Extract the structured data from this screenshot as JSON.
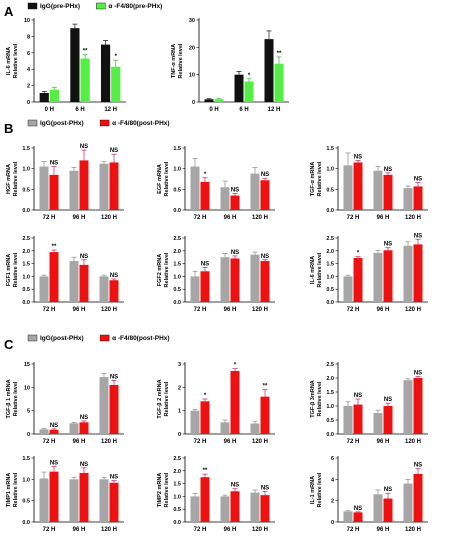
{
  "panels": [
    {
      "letter": "A",
      "series": [
        "IgG(pre-PHx)",
        "α -F4/80(pre-PHx)"
      ],
      "colors": [
        "#111111",
        "#55ee44"
      ]
    },
    {
      "letter": "B",
      "series": [
        "IgG(post-PHx)",
        "α -F4/80(post-PHx)"
      ],
      "colors": [
        "#a6a6a6",
        "#ee1111"
      ]
    },
    {
      "letter": "C",
      "series": [
        "IgG(post-PHx)",
        "α -F4/80(post-PHx)"
      ],
      "colors": [
        "#a6a6a6",
        "#ee1111"
      ]
    }
  ],
  "chart_data": [
    {
      "id": "A1",
      "type": "bar",
      "panel": "A",
      "ylabel": [
        "IL-6 mRNA",
        "Relative level"
      ],
      "categories": [
        "0 H",
        "6 H",
        "12 H"
      ],
      "ylim": [
        0,
        10
      ],
      "yticks": [
        0,
        2,
        4,
        6,
        8,
        10
      ],
      "series": [
        {
          "name": "IgG(pre-PHx)",
          "values": [
            1.1,
            9.0,
            7.0
          ],
          "err": [
            0.2,
            0.5,
            0.5
          ]
        },
        {
          "name": "α -F4/80(pre-PHx)",
          "values": [
            1.5,
            5.3,
            4.3
          ],
          "err": [
            0.3,
            0.5,
            0.8
          ]
        }
      ],
      "sig": [
        "",
        "**",
        "*"
      ]
    },
    {
      "id": "A2",
      "type": "bar",
      "panel": "A",
      "ylabel": [
        "TNF-α mRNA",
        "Relative level"
      ],
      "categories": [
        "0 H",
        "6 H",
        "12 H"
      ],
      "ylim": [
        0,
        30
      ],
      "yticks": [
        0,
        10,
        20,
        30
      ],
      "series": [
        {
          "name": "IgG(pre-PHx)",
          "values": [
            1.0,
            10.0,
            23.0
          ],
          "err": [
            0.2,
            1.2,
            3.0
          ]
        },
        {
          "name": "α -F4/80(pre-PHx)",
          "values": [
            1.0,
            7.5,
            14.0
          ],
          "err": [
            0.2,
            1.0,
            2.5
          ]
        }
      ],
      "sig": [
        "",
        "*",
        "**"
      ]
    },
    {
      "id": "B1",
      "type": "bar",
      "panel": "B",
      "ylabel": [
        "HGF mRNA",
        "Relative level"
      ],
      "categories": [
        "72 H",
        "96 H",
        "120 H"
      ],
      "ylim": [
        0,
        1.5
      ],
      "yticks": [
        0.0,
        0.5,
        1.0,
        1.5
      ],
      "series": [
        {
          "name": "IgG(post-PHx)",
          "values": [
            1.05,
            0.95,
            1.12
          ],
          "err": [
            0.12,
            0.08,
            0.05
          ]
        },
        {
          "name": "α -F4/80(post-PHx)",
          "values": [
            0.85,
            1.2,
            1.15
          ],
          "err": [
            0.2,
            0.25,
            0.2
          ]
        }
      ],
      "sig": [
        "NS",
        "NS",
        "NS"
      ]
    },
    {
      "id": "B2",
      "type": "bar",
      "panel": "B",
      "ylabel": [
        "EGF mRNA",
        "Relative level"
      ],
      "categories": [
        "72 H",
        "96 H",
        "120 H"
      ],
      "ylim": [
        0,
        1.5
      ],
      "yticks": [
        0.0,
        0.5,
        1.0,
        1.5
      ],
      "series": [
        {
          "name": "IgG(post-PHx)",
          "values": [
            1.05,
            0.55,
            0.88
          ],
          "err": [
            0.2,
            0.15,
            0.15
          ]
        },
        {
          "name": "α -F4/80(post-PHx)",
          "values": [
            0.68,
            0.35,
            0.72
          ],
          "err": [
            0.1,
            0.05,
            0.05
          ]
        }
      ],
      "sig": [
        "*",
        "NS",
        "NS"
      ]
    },
    {
      "id": "B3",
      "type": "bar",
      "panel": "B",
      "ylabel": [
        "TGF-α mRNA",
        "Relative level"
      ],
      "categories": [
        "72 H",
        "96 H",
        "120 H"
      ],
      "ylim": [
        0,
        1.5
      ],
      "yticks": [
        0.0,
        0.5,
        1.0,
        1.5
      ],
      "series": [
        {
          "name": "IgG(post-PHx)",
          "values": [
            1.08,
            0.95,
            0.53
          ],
          "err": [
            0.3,
            0.1,
            0.05
          ]
        },
        {
          "name": "α -F4/80(post-PHx)",
          "values": [
            1.15,
            0.85,
            0.57
          ],
          "err": [
            0.05,
            0.05,
            0.1
          ]
        }
      ],
      "sig": [
        "NS",
        "NS",
        "NS"
      ]
    },
    {
      "id": "B4",
      "type": "bar",
      "panel": "B",
      "ylabel": [
        "FGF1 mRNA",
        "Relative level"
      ],
      "categories": [
        "72 H",
        "96 H",
        "120 H"
      ],
      "ylim": [
        0,
        2.5
      ],
      "yticks": [
        0.0,
        0.5,
        1.0,
        1.5,
        2.0,
        2.5
      ],
      "series": [
        {
          "name": "IgG(post-PHx)",
          "values": [
            1.0,
            1.6,
            1.0
          ],
          "err": [
            0.05,
            0.15,
            0.05
          ]
        },
        {
          "name": "α -F4/80(post-PHx)",
          "values": [
            1.95,
            1.45,
            0.85
          ],
          "err": [
            0.08,
            0.2,
            0.05
          ]
        }
      ],
      "sig": [
        "**",
        "NS",
        "NS"
      ]
    },
    {
      "id": "B5",
      "type": "bar",
      "panel": "B",
      "ylabel": [
        "FGF2 mRNA",
        "Relative level"
      ],
      "categories": [
        "72 H",
        "96 H",
        "120 H"
      ],
      "ylim": [
        0,
        2.5
      ],
      "yticks": [
        0.0,
        0.5,
        1.0,
        1.5,
        2.0,
        2.5
      ],
      "series": [
        {
          "name": "IgG(post-PHx)",
          "values": [
            1.0,
            1.75,
            1.85
          ],
          "err": [
            0.2,
            0.15,
            0.1
          ]
        },
        {
          "name": "α -F4/80(post-PHx)",
          "values": [
            1.2,
            1.7,
            1.6
          ],
          "err": [
            0.15,
            0.1,
            0.05
          ]
        }
      ],
      "sig": [
        "NS",
        "NS",
        "NS"
      ]
    },
    {
      "id": "B6",
      "type": "bar",
      "panel": "B",
      "ylabel": [
        "IL-6 mRNA",
        "Relative level"
      ],
      "categories": [
        "72 H",
        "96 H",
        "120 H"
      ],
      "ylim": [
        0,
        2.5
      ],
      "yticks": [
        0.0,
        0.5,
        1.0,
        1.5,
        2.0,
        2.5
      ],
      "series": [
        {
          "name": "IgG(post-PHx)",
          "values": [
            1.0,
            1.92,
            2.2
          ],
          "err": [
            0.05,
            0.1,
            0.15
          ]
        },
        {
          "name": "α -F4/80(post-PHx)",
          "values": [
            1.72,
            2.02,
            2.25
          ],
          "err": [
            0.05,
            0.1,
            0.2
          ]
        }
      ],
      "sig": [
        "*",
        "NS",
        "NS"
      ]
    },
    {
      "id": "C1",
      "type": "bar",
      "panel": "C",
      "ylabel": [
        "TGF-β 1 mRNA",
        "Relative level"
      ],
      "categories": [
        "72 H",
        "96 H",
        "120 H"
      ],
      "ylim": [
        0,
        15
      ],
      "yticks": [
        0,
        5,
        10,
        15
      ],
      "series": [
        {
          "name": "IgG(post-PHx)",
          "values": [
            1.0,
            2.3,
            12.2
          ],
          "err": [
            0.2,
            0.2,
            0.8
          ]
        },
        {
          "name": "α -F4/80(post-PHx)",
          "values": [
            0.9,
            2.5,
            10.5
          ],
          "err": [
            0.2,
            0.3,
            1.0
          ]
        }
      ],
      "sig": [
        "NS",
        "NS",
        "NS"
      ]
    },
    {
      "id": "C2",
      "type": "bar",
      "panel": "C",
      "ylabel": [
        "TGF-β 2 mRNA",
        "Relative level"
      ],
      "categories": [
        "72 H",
        "96 H",
        "120 H"
      ],
      "ylim": [
        0,
        3
      ],
      "yticks": [
        0,
        1,
        2,
        3
      ],
      "series": [
        {
          "name": "IgG(post-PHx)",
          "values": [
            1.0,
            0.5,
            0.45
          ],
          "err": [
            0.05,
            0.1,
            0.1
          ]
        },
        {
          "name": "α -F4/80(post-PHx)",
          "values": [
            1.4,
            2.7,
            1.6
          ],
          "err": [
            0.1,
            0.1,
            0.3
          ]
        }
      ],
      "sig": [
        "*",
        "*",
        "**"
      ]
    },
    {
      "id": "C3",
      "type": "bar",
      "panel": "C",
      "ylabel": [
        "TGF-β 3mRNA",
        "Relative level"
      ],
      "categories": [
        "72 H",
        "96 H",
        "120 H"
      ],
      "ylim": [
        0,
        2.5
      ],
      "yticks": [
        0.0,
        0.5,
        1.0,
        1.5,
        2.0,
        2.5
      ],
      "series": [
        {
          "name": "IgG(post-PHx)",
          "values": [
            1.0,
            0.75,
            1.92
          ],
          "err": [
            0.15,
            0.1,
            0.05
          ]
        },
        {
          "name": "α -F4/80(post-PHx)",
          "values": [
            1.05,
            1.0,
            2.0
          ],
          "err": [
            0.2,
            0.1,
            0.05
          ]
        }
      ],
      "sig": [
        "NS",
        "NS",
        "NS"
      ]
    },
    {
      "id": "C4",
      "type": "bar",
      "panel": "C",
      "ylabel": [
        "TIMP1 mRNA",
        "Relative level"
      ],
      "categories": [
        "72 H",
        "96 H",
        "120 H"
      ],
      "ylim": [
        0,
        1.5
      ],
      "yticks": [
        0.0,
        0.5,
        1.0,
        1.5
      ],
      "series": [
        {
          "name": "IgG(post-PHx)",
          "values": [
            1.02,
            1.0,
            1.0
          ],
          "err": [
            0.15,
            0.05,
            0.05
          ]
        },
        {
          "name": "α -F4/80(post-PHx)",
          "values": [
            1.18,
            1.15,
            0.92
          ],
          "err": [
            0.12,
            0.12,
            0.05
          ]
        }
      ],
      "sig": [
        "NS",
        "NS",
        "NS"
      ]
    },
    {
      "id": "C5",
      "type": "bar",
      "panel": "C",
      "ylabel": [
        "TIMP2 mRNA",
        "Relative level"
      ],
      "categories": [
        "72 H",
        "96 H",
        "120 H"
      ],
      "ylim": [
        0,
        2.5
      ],
      "yticks": [
        0.0,
        0.5,
        1.0,
        1.5,
        2.0,
        2.5
      ],
      "series": [
        {
          "name": "IgG(post-PHx)",
          "values": [
            1.0,
            1.0,
            1.15
          ],
          "err": [
            0.12,
            0.05,
            0.1
          ]
        },
        {
          "name": "α -F4/80(post-PHx)",
          "values": [
            1.75,
            1.2,
            1.05
          ],
          "err": [
            0.12,
            0.1,
            0.15
          ]
        }
      ],
      "sig": [
        "**",
        "NS",
        "NS"
      ]
    },
    {
      "id": "C6",
      "type": "bar",
      "panel": "C",
      "ylabel": [
        "IL-1 mRNA",
        "Relative level"
      ],
      "categories": [
        "72 H",
        "96 H",
        "120 H"
      ],
      "ylim": [
        0,
        6
      ],
      "yticks": [
        0,
        2,
        4,
        6
      ],
      "series": [
        {
          "name": "IgG(post-PHx)",
          "values": [
            1.0,
            2.6,
            3.6
          ],
          "err": [
            0.1,
            0.4,
            0.4
          ]
        },
        {
          "name": "α -F4/80(post-PHx)",
          "values": [
            0.9,
            2.2,
            4.5
          ],
          "err": [
            0.05,
            0.5,
            0.5
          ]
        }
      ],
      "sig": [
        "NS",
        "NS",
        "NS"
      ]
    }
  ]
}
